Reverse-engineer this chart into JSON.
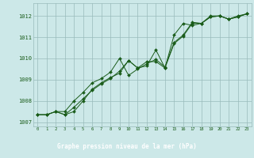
{
  "title": "Graphe pression niveau de la mer (hPa)",
  "background_color": "#cce8e8",
  "plot_bg_color": "#cce8e8",
  "label_bg_color": "#3a7a3a",
  "grid_color": "#99bbbb",
  "line_color": "#1a5c1a",
  "marker_color": "#1a5c1a",
  "xlim": [
    -0.5,
    23.5
  ],
  "ylim": [
    1006.8,
    1012.6
  ],
  "yticks": [
    1007,
    1008,
    1009,
    1010,
    1011,
    1012
  ],
  "xticks": [
    0,
    1,
    2,
    3,
    4,
    5,
    6,
    7,
    8,
    9,
    10,
    11,
    12,
    13,
    14,
    15,
    16,
    17,
    18,
    19,
    20,
    21,
    22,
    23
  ],
  "series1_x": [
    0,
    1,
    2,
    3,
    4,
    5,
    6,
    7,
    8,
    9,
    10,
    11,
    12,
    13,
    14,
    15,
    16,
    17,
    18,
    19,
    20,
    21,
    22,
    23
  ],
  "series1_y": [
    1007.35,
    1007.35,
    1007.5,
    1007.35,
    1007.5,
    1008.0,
    1008.55,
    1008.85,
    1009.1,
    1009.3,
    1009.9,
    1009.55,
    1009.85,
    1009.85,
    1009.55,
    1010.7,
    1011.05,
    1011.65,
    1011.65,
    1011.95,
    1012.0,
    1011.85,
    1011.95,
    1012.1
  ],
  "series2_x": [
    0,
    1,
    2,
    3,
    4,
    5,
    6,
    7,
    8,
    9,
    10,
    11,
    12,
    13,
    14,
    15,
    16,
    17,
    18,
    19,
    20,
    21,
    22,
    23
  ],
  "series2_y": [
    1007.35,
    1007.35,
    1007.5,
    1007.5,
    1008.0,
    1008.4,
    1008.85,
    1009.05,
    1009.35,
    1010.0,
    1009.2,
    1009.5,
    1009.75,
    1009.95,
    1009.6,
    1010.75,
    1011.1,
    1011.7,
    1011.65,
    1011.95,
    1012.0,
    1011.85,
    1011.95,
    1012.1
  ],
  "series3_x": [
    0,
    1,
    2,
    3,
    4,
    5,
    6,
    7,
    8,
    9,
    10,
    11,
    12,
    13,
    14,
    15,
    16,
    17,
    18,
    19,
    20,
    21,
    22,
    23
  ],
  "series3_y": [
    1007.35,
    1007.35,
    1007.5,
    1007.35,
    1007.7,
    1008.1,
    1008.5,
    1008.8,
    1009.05,
    1009.4,
    1009.9,
    1009.55,
    1009.65,
    1010.4,
    1009.55,
    1011.1,
    1011.65,
    1011.55,
    1011.65,
    1012.0,
    1012.0,
    1011.85,
    1012.0,
    1012.1
  ]
}
